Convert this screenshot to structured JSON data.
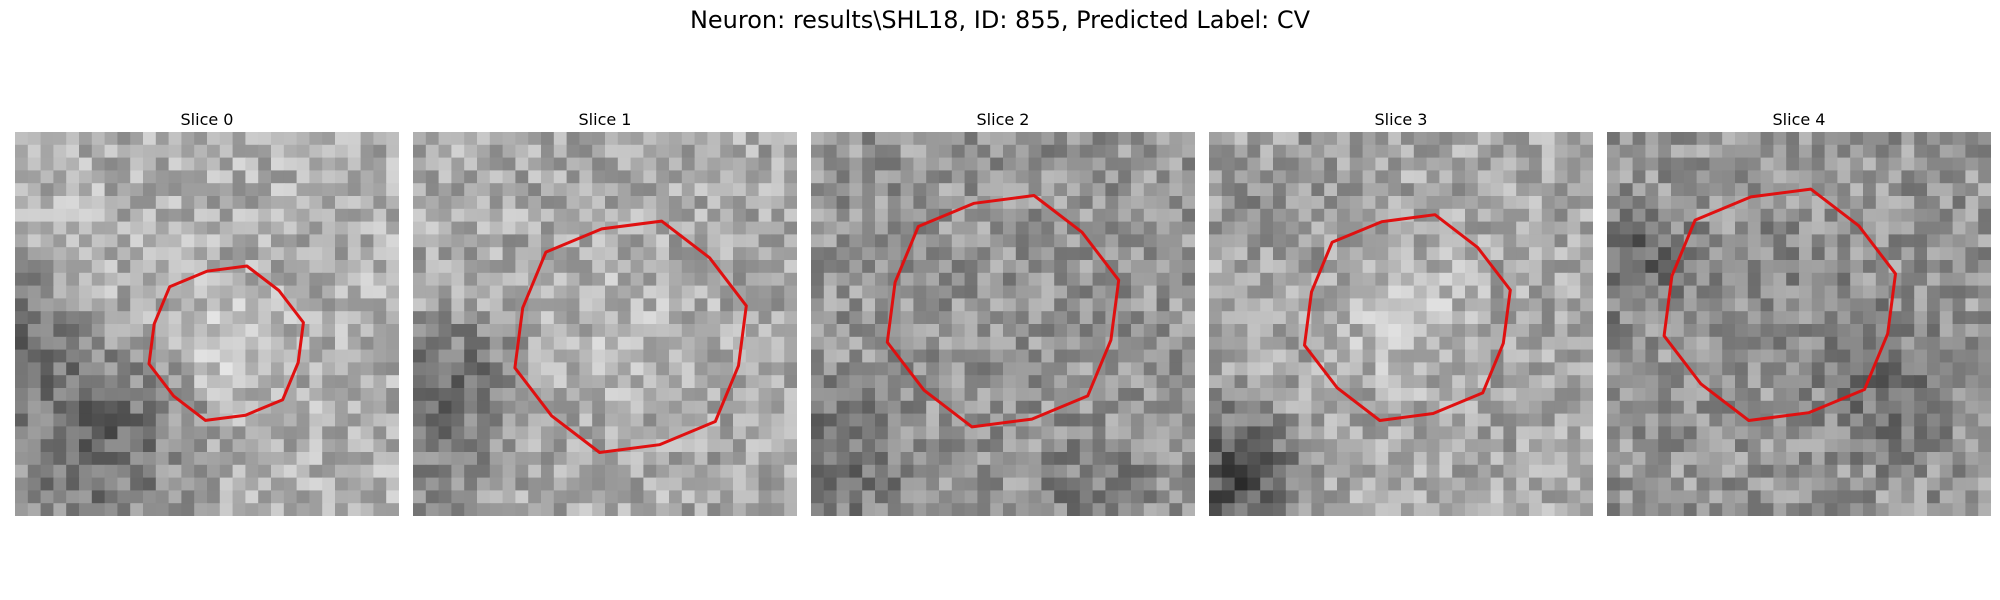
{
  "figure": {
    "title": "Neuron: results\\SHL18, ID: 855, Predicted Label: CV"
  },
  "colors": {
    "contour": "#e01010",
    "background": "#ffffff",
    "colormap": "grayscale"
  },
  "slices": [
    {
      "label": "Slice 0"
    },
    {
      "label": "Slice 1"
    },
    {
      "label": "Slice 2"
    },
    {
      "label": "Slice 3"
    },
    {
      "label": "Slice 4"
    }
  ]
}
